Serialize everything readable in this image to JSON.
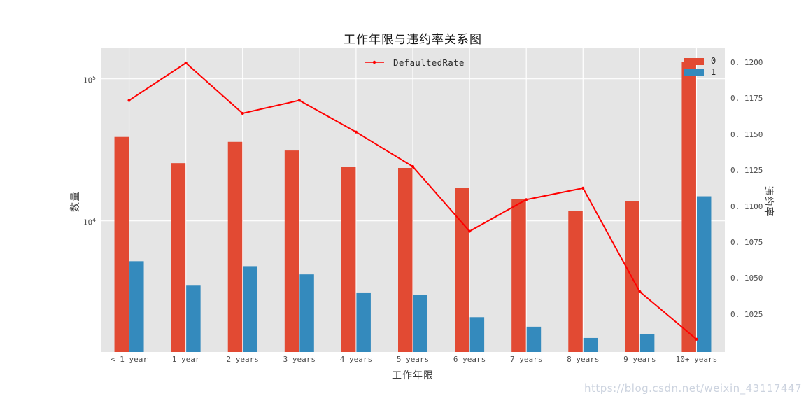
{
  "title": "工作年限与违约率关系图",
  "watermark": "https://blog.csdn.net/weixin_43117447",
  "colors": {
    "bar0": "#E24A33",
    "bar1": "#348ABD",
    "line": "#FF0000",
    "plot_bg": "#E5E5E5",
    "grid": "#FFFFFF",
    "tick_text": "#4D4D4D",
    "title_text": "#1A1A1A",
    "watermark": "#CCD3DF"
  },
  "legend_line": {
    "label": "DefaultedRate"
  },
  "legend_bars": [
    {
      "label": "0",
      "color": "#E24A33"
    },
    {
      "label": "1",
      "color": "#348ABD"
    }
  ],
  "chart_data": {
    "type": "bar",
    "subtype": "grouped bars (log left axis) + line (right axis)",
    "title": "工作年限与违约率关系图",
    "xlabel": "工作年限",
    "ylabel_left": "数量",
    "ylabel_right": "违约率",
    "grid": "on",
    "legend_position": {
      "line": "upper center",
      "bars": "upper right"
    },
    "categories": [
      "< 1 year",
      "1 year",
      "2 years",
      "3 years",
      "4 years",
      "5 years",
      "6 years",
      "7 years",
      "8 years",
      "9 years",
      "10+ years"
    ],
    "series": [
      {
        "name": "0",
        "type": "bar",
        "axis": "left",
        "values": [
          39000,
          25500,
          36000,
          31300,
          23900,
          23600,
          17000,
          14300,
          11800,
          13700,
          132000
        ]
      },
      {
        "name": "1",
        "type": "bar",
        "axis": "left",
        "values": [
          5200,
          3500,
          4800,
          4200,
          3100,
          3000,
          2100,
          1800,
          1500,
          1600,
          14900
        ]
      },
      {
        "name": "DefaultedRate",
        "type": "line",
        "axis": "right",
        "values": [
          0.1174,
          0.12,
          0.1165,
          0.1174,
          0.1152,
          0.1128,
          0.1083,
          0.1105,
          0.1113,
          0.1041,
          0.1008
        ]
      }
    ],
    "left_axis": {
      "scale": "log",
      "ticks": [
        {
          "base": "10",
          "exp": "5",
          "value": 100000
        },
        {
          "base": "10",
          "exp": "4",
          "value": 10000
        }
      ],
      "range_approx": [
        1200,
        160000
      ]
    },
    "right_axis": {
      "scale": "linear",
      "ticks": [
        {
          "label": "0. 1200",
          "value": 0.12
        },
        {
          "label": "0. 1175",
          "value": 0.1175
        },
        {
          "label": "0. 1150",
          "value": 0.115
        },
        {
          "label": "0. 1125",
          "value": 0.1125
        },
        {
          "label": "0. 1100",
          "value": 0.11
        },
        {
          "label": "0. 1075",
          "value": 0.1075
        },
        {
          "label": "0. 1050",
          "value": 0.105
        },
        {
          "label": "0. 1025",
          "value": 0.1025
        }
      ],
      "range_approx": [
        0.0998,
        0.1209
      ]
    }
  }
}
